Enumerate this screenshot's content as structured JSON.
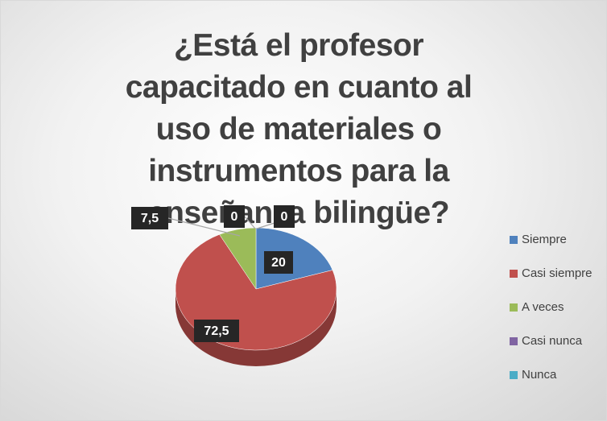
{
  "chart_data": {
    "type": "pie",
    "title": "¿Está el profesor capacitado en cuanto al uso de materiales o instrumentos para la enseñanza bilingüe?",
    "categories": [
      "Siempre",
      "Casi siempre",
      "A veces",
      "Casi nunca",
      "Nunca"
    ],
    "values": [
      20,
      72.5,
      7.5,
      0,
      0
    ],
    "value_labels": [
      "20",
      "72,5",
      "7,5",
      "0",
      "0"
    ],
    "colors": [
      "#4f81bd",
      "#c0504d",
      "#9bbb59",
      "#8064a2",
      "#4bacc6"
    ],
    "legend": "right"
  }
}
